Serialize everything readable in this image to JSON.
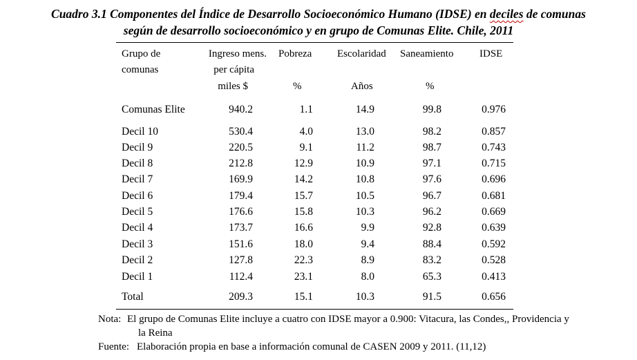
{
  "title": {
    "line1_part1": "Cuadro 3.1 Componentes del Índice de Desarrollo Socioeconómico Humano (IDSE) en ",
    "line1_wavy": "deciles",
    "line1_part2": " de comunas",
    "line2": "según de desarrollo socioeconómico y en grupo de Comunas Elite. Chile, 2011"
  },
  "headers": {
    "group": [
      "Grupo de",
      "comunas"
    ],
    "ingreso": [
      "Ingreso mens.",
      "per cápita",
      "miles $"
    ],
    "pobreza": [
      "Pobreza",
      "%"
    ],
    "escolaridad": [
      "Escolaridad",
      "Años"
    ],
    "saneamiento": [
      "Saneamiento",
      "%"
    ],
    "idse": [
      "IDSE"
    ]
  },
  "rows": [
    {
      "group": "Comunas Elite",
      "ingreso": "940.2",
      "pobreza": "1.1",
      "escolaridad": "14.9",
      "saneamiento": "99.8",
      "idse": "0.976"
    },
    {
      "group": "Decil 10",
      "ingreso": "530.4",
      "pobreza": "4.0",
      "escolaridad": "13.0",
      "saneamiento": "98.2",
      "idse": "0.857"
    },
    {
      "group": "Decil 9",
      "ingreso": "220.5",
      "pobreza": "9.1",
      "escolaridad": "11.2",
      "saneamiento": "98.7",
      "idse": "0.743"
    },
    {
      "group": "Decil 8",
      "ingreso": "212.8",
      "pobreza": "12.9",
      "escolaridad": "10.9",
      "saneamiento": "97.1",
      "idse": "0.715"
    },
    {
      "group": "Decil 7",
      "ingreso": "169.9",
      "pobreza": "14.2",
      "escolaridad": "10.8",
      "saneamiento": "97.6",
      "idse": "0.696"
    },
    {
      "group": "Decil 6",
      "ingreso": "179.4",
      "pobreza": "15.7",
      "escolaridad": "10.5",
      "saneamiento": "96.7",
      "idse": "0.681"
    },
    {
      "group": "Decil 5",
      "ingreso": "176.6",
      "pobreza": "15.8",
      "escolaridad": "10.3",
      "saneamiento": "96.2",
      "idse": "0.669"
    },
    {
      "group": "Decil 4",
      "ingreso": "173.7",
      "pobreza": "16.6",
      "escolaridad": "9.9",
      "saneamiento": "92.8",
      "idse": "0.639"
    },
    {
      "group": "Decil 3",
      "ingreso": "151.6",
      "pobreza": "18.0",
      "escolaridad": "9.4",
      "saneamiento": "88.4",
      "idse": "0.592"
    },
    {
      "group": "Decil 2",
      "ingreso": "127.8",
      "pobreza": "22.3",
      "escolaridad": "8.9",
      "saneamiento": "83.2",
      "idse": "0.528"
    },
    {
      "group": "Decil 1",
      "ingreso": "112.4",
      "pobreza": "23.1",
      "escolaridad": "8.0",
      "saneamiento": "65.3",
      "idse": "0.413"
    },
    {
      "group": "Total",
      "ingreso": "209.3",
      "pobreza": "15.1",
      "escolaridad": "10.3",
      "saneamiento": "91.5",
      "idse": "0.656"
    }
  ],
  "notes": {
    "nota_label": "Nota:",
    "nota_line1": "El grupo de Comunas Elite incluye a cuatro con IDSE mayor a 0.900: Vitacura, las Condes,, Providencia y",
    "nota_line2": "la Reina",
    "fuente_label": "Fuente:",
    "fuente_text": "Elaboración propia en base a información comunal de CASEN 2009 y 2011. (11,12)"
  }
}
